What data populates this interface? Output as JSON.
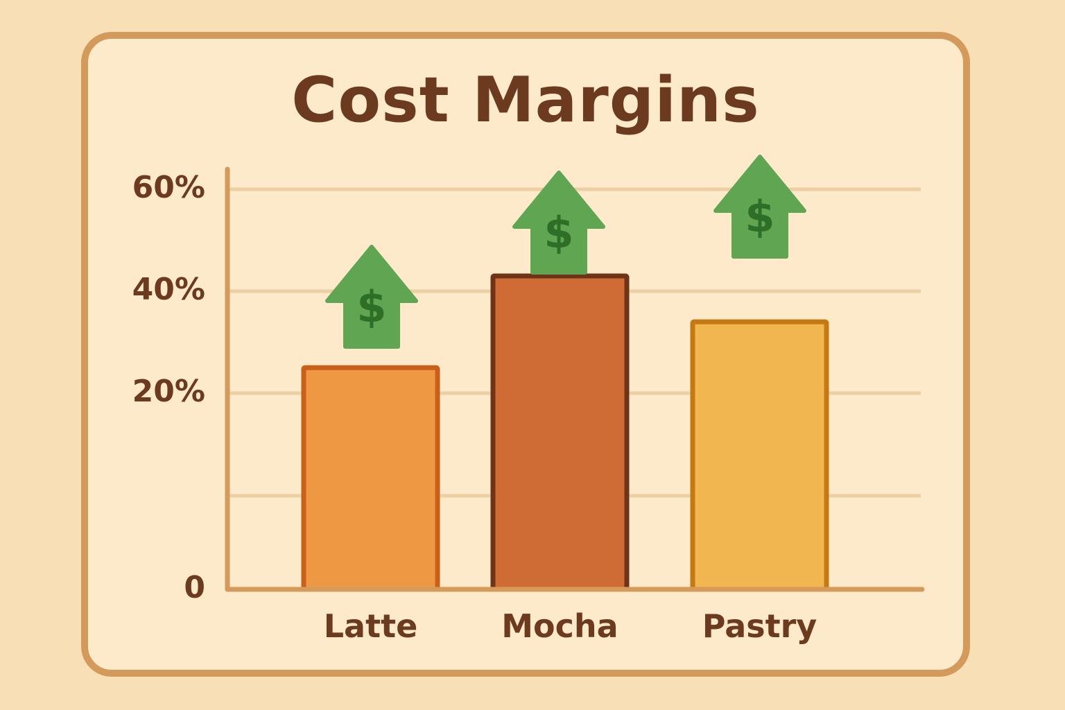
{
  "title": "Cost Margins",
  "colors": {
    "page_bg": "#F8DFB6",
    "card_bg": "#FDEACB",
    "card_border": "#D39A5B",
    "text": "#6B3A1F",
    "grid": "#EDCFA4",
    "axis": "#D39A5B",
    "arrow": "#5FA552",
    "arrow_symbol": "#2F6E27"
  },
  "chart_data": {
    "type": "bar",
    "title": "Cost Margins",
    "xlabel": "",
    "ylabel": "",
    "categories": [
      "Latte",
      "Mocha",
      "Pastry"
    ],
    "values": [
      25,
      43,
      34
    ],
    "unit": "%",
    "ylim": [
      0,
      60
    ],
    "yticks": [
      {
        "label": "0",
        "value": 0
      },
      {
        "label": "20%",
        "value": 20
      },
      {
        "label": "40%",
        "value": 40
      },
      {
        "label": "60%",
        "value": 60
      }
    ],
    "gridlines": [
      10,
      20,
      40,
      60
    ],
    "grid": true,
    "legend": null,
    "bar_styles": [
      {
        "fill": "#EE9844",
        "stroke": "#C8601A"
      },
      {
        "fill": "#CF6C35",
        "stroke": "#6F3418"
      },
      {
        "fill": "#F1B64F",
        "stroke": "#C47912"
      }
    ],
    "annotations": [
      {
        "category": "Latte",
        "icon": "dollar-up-arrow-icon",
        "symbol": "$"
      },
      {
        "category": "Mocha",
        "icon": "dollar-up-arrow-icon",
        "symbol": "$"
      },
      {
        "category": "Pastry",
        "icon": "dollar-up-arrow-icon",
        "symbol": "$"
      }
    ]
  }
}
